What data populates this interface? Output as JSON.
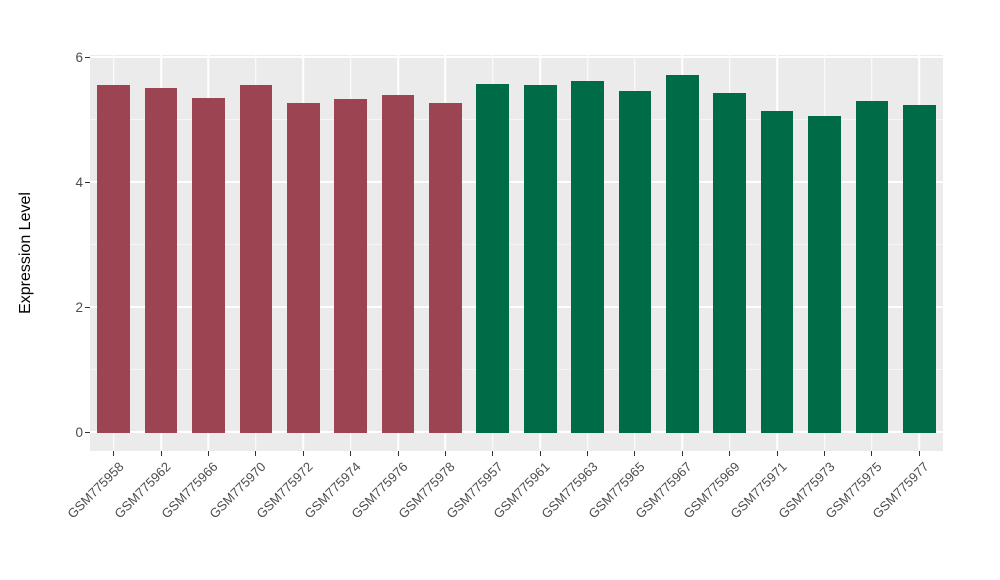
{
  "chart_data": {
    "type": "bar",
    "title": "",
    "xlabel": "",
    "ylabel": "Expression Level",
    "categories": [
      "GSM775958",
      "GSM775962",
      "GSM775966",
      "GSM775970",
      "GSM775972",
      "GSM775974",
      "GSM775976",
      "GSM775978",
      "GSM775957",
      "GSM775961",
      "GSM775963",
      "GSM775965",
      "GSM775967",
      "GSM775969",
      "GSM775971",
      "GSM775973",
      "GSM775975",
      "GSM775977"
    ],
    "values": [
      5.57,
      5.52,
      5.35,
      5.57,
      5.28,
      5.34,
      5.41,
      5.28,
      5.58,
      5.57,
      5.62,
      5.47,
      5.73,
      5.44,
      5.14,
      5.07,
      5.31,
      5.25
    ],
    "groups": [
      "a",
      "a",
      "a",
      "a",
      "a",
      "a",
      "a",
      "a",
      "b",
      "b",
      "b",
      "b",
      "b",
      "b",
      "b",
      "b",
      "b",
      "b"
    ],
    "group_colors": {
      "a": "#9c4452",
      "b": "#006b47"
    },
    "yticks": [
      0,
      2,
      4,
      6
    ],
    "ytick_labels": [
      "0",
      "2",
      "4",
      "6"
    ],
    "y_minor_ticks": [
      1,
      3,
      5
    ],
    "ylim": [
      0,
      6
    ],
    "panel_range": [
      -0.293,
      6.043
    ],
    "grid": "on",
    "legend": "none",
    "panel_bg": "#ebebeb",
    "grid_color": "#ffffff",
    "tick_color": "#333333",
    "bar_width_frac": 0.69
  }
}
